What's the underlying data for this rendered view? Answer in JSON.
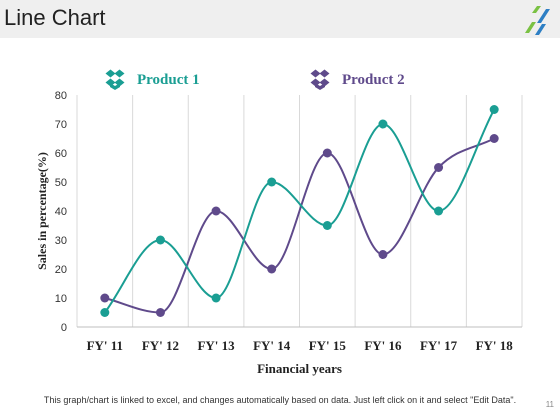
{
  "header": {
    "title": "Line Chart"
  },
  "footer": {
    "note": "This graph/chart is linked to excel, and changes automatically based on data. Just left click on it and select \"Edit Data\".",
    "page_number": "11"
  },
  "colors": {
    "product1": "#1a9e93",
    "product2": "#5f4a8b",
    "logo_green": "#7ac143",
    "logo_blue": "#2e7fc4",
    "header_bg": "#efefef"
  },
  "icons": {
    "legend_marker": "dropbox-box-icon",
    "logo": "slanted-bars-logo"
  },
  "chart_data": {
    "type": "line",
    "categories": [
      "FY' 11",
      "FY' 12",
      "FY' 13",
      "FY' 14",
      "FY' 15",
      "FY' 16",
      "FY' 17",
      "FY' 18"
    ],
    "series": [
      {
        "name": "Product 1",
        "color": "#1a9e93",
        "values": [
          5,
          30,
          10,
          50,
          35,
          70,
          40,
          75
        ]
      },
      {
        "name": "Product 2",
        "color": "#5f4a8b",
        "values": [
          10,
          5,
          40,
          20,
          60,
          25,
          55,
          65
        ]
      }
    ],
    "xlabel": "Financial years",
    "ylabel": "Sales in percentage(%)",
    "ylim": [
      0,
      80
    ],
    "yticks": [
      0,
      10,
      20,
      30,
      40,
      50,
      60,
      70,
      80
    ],
    "smooth": true,
    "grid": "vertical",
    "legend": "top"
  }
}
